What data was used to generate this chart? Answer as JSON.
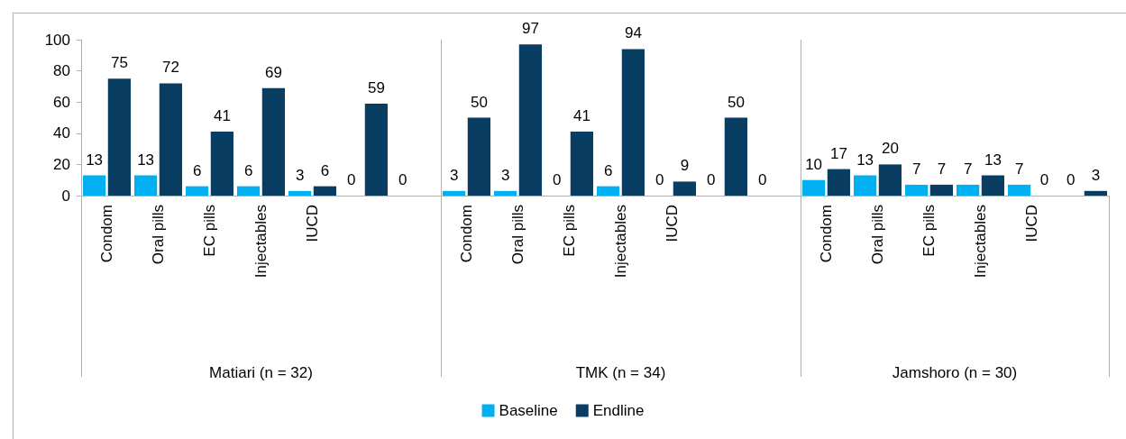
{
  "chart_data": [
    {
      "type": "bar",
      "xlabel": "Matiari (n = 32)",
      "categories": [
        "Condom",
        "Oral pills",
        "EC pills",
        "Injectables",
        "IUCD",
        null,
        null
      ],
      "series": [
        {
          "name": "Baseline",
          "color": "#00b0f0",
          "values": [
            13,
            13,
            6,
            6,
            3,
            0,
            0
          ]
        },
        {
          "name": "Endline",
          "color": "#0a3d62",
          "values": [
            75,
            72,
            41,
            69,
            6,
            59,
            null
          ]
        }
      ],
      "ylim": [
        0,
        100
      ],
      "yticks": [
        0,
        20,
        40,
        60,
        80,
        100
      ],
      "data_labels": true,
      "grid": false,
      "legend": "bottom"
    },
    {
      "type": "bar",
      "xlabel": "TMK (n = 34)",
      "categories": [
        "Condom",
        "Oral pills",
        "EC pills",
        "Injectables",
        "IUCD",
        null,
        null
      ],
      "series": [
        {
          "color": "#00b0f0",
          "values": [
            3,
            3,
            0,
            6,
            0,
            0,
            0
          ]
        },
        {
          "color": "#0a3d62",
          "values": [
            50,
            97,
            41,
            94,
            9,
            50,
            null
          ]
        }
      ],
      "ylim": [
        0,
        100
      ],
      "yticks": [
        0,
        20,
        40,
        60,
        80,
        100
      ],
      "data_labels": true,
      "grid": false,
      "legend": false,
      "tick_labels": "x"
    },
    {
      "type": "bar",
      "xlabel": "Jamshoro (n = 30)",
      "categories": [
        "Condom",
        "Oral pills",
        "EC pills",
        "Injectables",
        "IUCD",
        null
      ],
      "series": [
        {
          "color": "#00b0f0",
          "values": [
            10,
            13,
            7,
            7,
            7,
            0
          ]
        },
        {
          "color": "#0a3d62",
          "values": [
            17,
            20,
            7,
            13,
            0,
            3
          ]
        }
      ],
      "ylim": [
        0,
        100
      ],
      "yticks": [
        0,
        20,
        40,
        60,
        80,
        100
      ],
      "data_labels": true,
      "grid": false,
      "legend": false,
      "tick_labels": "x"
    }
  ]
}
